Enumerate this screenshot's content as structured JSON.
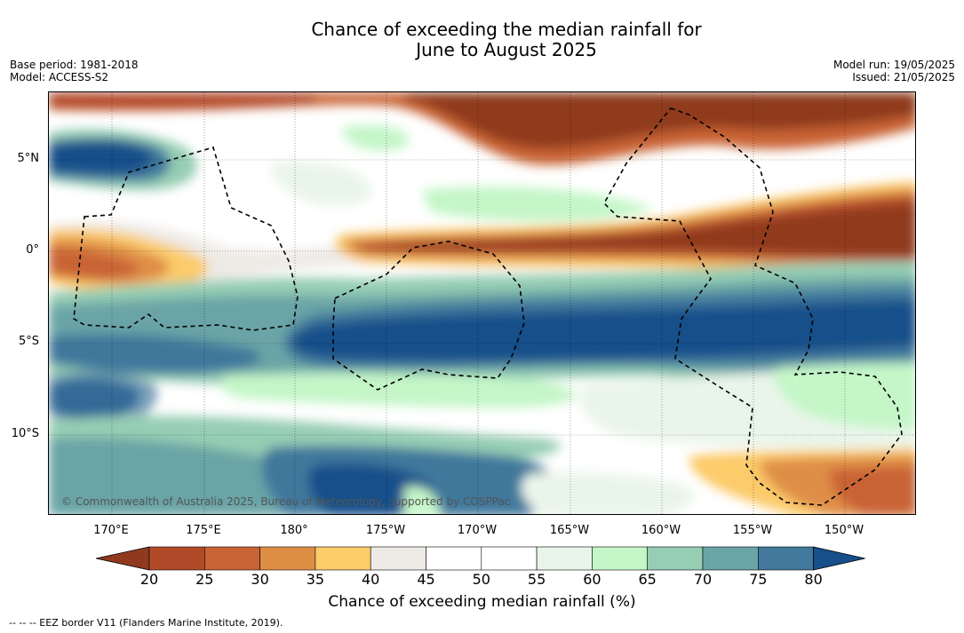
{
  "title_line1": "Chance of exceeding the median rainfall for",
  "title_line2": "June to August 2025",
  "meta_left": [
    "Base period: 1981-2018",
    "Model: ACCESS-S2"
  ],
  "meta_right": [
    "Model run: 19/05/2025",
    "Issued: 21/05/2025"
  ],
  "copyright": "© Commonwealth of Australia 2025, Bureau of Meteorology, supported by COSPPac",
  "lat_labels": [
    "5°N",
    "0°",
    "5°S",
    "10°S"
  ],
  "lon_labels": [
    "170°E",
    "175°E",
    "180°",
    "175°W",
    "170°W",
    "165°W",
    "160°W",
    "155°W",
    "150°W"
  ],
  "colorbar": {
    "ticks": [
      "20",
      "25",
      "30",
      "35",
      "40",
      "45",
      "50",
      "55",
      "60",
      "65",
      "70",
      "75",
      "80"
    ],
    "colors": [
      "#8f3a1f",
      "#b24a2a",
      "#c96434",
      "#df8e46",
      "#fccb6a",
      "#eeeae6",
      "#ffffff",
      "#ffffff",
      "#eaf5ea",
      "#c4f6c8",
      "#96ceb4",
      "#6ba4a6",
      "#41789c",
      "#164f8a"
    ],
    "label": "Chance of exceeding median rainfall (%)"
  },
  "footer": "--  --  -- EEZ border V11 (Flanders Marine Institute, 2019)."
}
